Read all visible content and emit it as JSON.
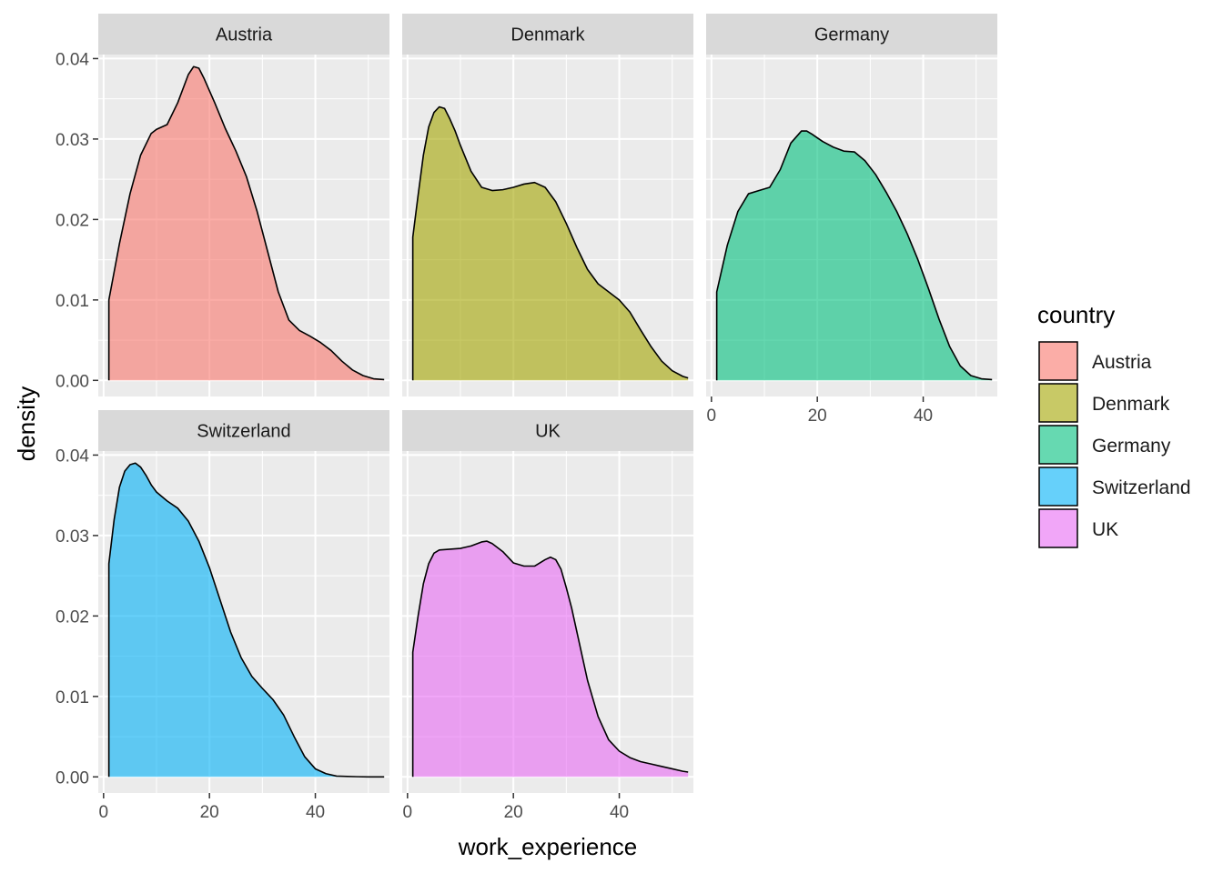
{
  "chart_data": {
    "type": "area",
    "subtype": "faceted-density",
    "x_label": "work_experience",
    "y_label": "density",
    "xlim": [
      -1,
      54
    ],
    "ylim": [
      -0.002,
      0.0405
    ],
    "x_ticks": [
      0,
      20,
      40
    ],
    "y_ticks": [
      0.0,
      0.01,
      0.02,
      0.03,
      0.04
    ],
    "y_tick_labels": [
      "0.00",
      "0.01",
      "0.02",
      "0.03",
      "0.04"
    ],
    "legend": {
      "title": "country",
      "placement": "right",
      "items": [
        {
          "label": "Austria",
          "color": "#F8766D"
        },
        {
          "label": "Denmark",
          "color": "#A3A500"
        },
        {
          "label": "Germany",
          "color": "#00BF7D"
        },
        {
          "label": "Switzerland",
          "color": "#00B0F6"
        },
        {
          "label": "UK",
          "color": "#E76BF3"
        }
      ]
    },
    "facets": [
      {
        "name": "Austria",
        "color": "#F8766D",
        "x": [
          1,
          3,
          5,
          7,
          9,
          10,
          12,
          14,
          16,
          17,
          18,
          19,
          21,
          23,
          25,
          27,
          29,
          31,
          33,
          35,
          37,
          39,
          41,
          43,
          45,
          47,
          49,
          51,
          53
        ],
        "y": [
          0.01,
          0.017,
          0.0232,
          0.028,
          0.0307,
          0.0312,
          0.0318,
          0.0345,
          0.038,
          0.039,
          0.0388,
          0.0375,
          0.0345,
          0.0313,
          0.0285,
          0.0253,
          0.021,
          0.016,
          0.011,
          0.0075,
          0.0062,
          0.0055,
          0.0047,
          0.0037,
          0.0024,
          0.0013,
          0.0006,
          0.0002,
          0.0001
        ]
      },
      {
        "name": "Denmark",
        "color": "#A3A500",
        "x": [
          1,
          2,
          3,
          4,
          5,
          6,
          7,
          8,
          9,
          10,
          12,
          14,
          16,
          18,
          20,
          22,
          24,
          26,
          28,
          30,
          32,
          34,
          36,
          38,
          40,
          42,
          44,
          46,
          48,
          50,
          52,
          53
        ],
        "y": [
          0.0178,
          0.023,
          0.028,
          0.0315,
          0.0333,
          0.034,
          0.0338,
          0.0325,
          0.031,
          0.0292,
          0.026,
          0.024,
          0.0236,
          0.0237,
          0.024,
          0.0244,
          0.0246,
          0.024,
          0.0222,
          0.0195,
          0.0165,
          0.0138,
          0.012,
          0.011,
          0.01,
          0.0085,
          0.0063,
          0.0042,
          0.0024,
          0.0012,
          0.0005,
          0.0003
        ]
      },
      {
        "name": "Germany",
        "color": "#00BF7D",
        "x": [
          1,
          3,
          5,
          7,
          9,
          11,
          13,
          15,
          17,
          18,
          19,
          21,
          23,
          25,
          27,
          29,
          31,
          33,
          35,
          37,
          39,
          41,
          43,
          45,
          47,
          49,
          51,
          53
        ],
        "y": [
          0.011,
          0.0168,
          0.021,
          0.0232,
          0.0236,
          0.024,
          0.0262,
          0.0295,
          0.031,
          0.031,
          0.0306,
          0.0297,
          0.029,
          0.0285,
          0.0284,
          0.0273,
          0.0256,
          0.0234,
          0.021,
          0.0182,
          0.015,
          0.0114,
          0.0076,
          0.0042,
          0.0018,
          0.0006,
          0.0002,
          0.0001
        ]
      },
      {
        "name": "Switzerland",
        "color": "#00B0F6",
        "x": [
          1,
          2,
          3,
          4,
          5,
          6,
          7,
          8,
          9,
          10,
          12,
          14,
          16,
          18,
          20,
          22,
          24,
          26,
          28,
          30,
          32,
          34,
          36,
          38,
          40,
          42,
          44,
          46,
          48,
          50,
          52,
          53
        ],
        "y": [
          0.0265,
          0.032,
          0.036,
          0.038,
          0.0388,
          0.039,
          0.0385,
          0.0375,
          0.0363,
          0.0354,
          0.0343,
          0.0334,
          0.0318,
          0.0293,
          0.026,
          0.022,
          0.018,
          0.0148,
          0.0125,
          0.011,
          0.0096,
          0.0077,
          0.005,
          0.0025,
          0.001,
          0.0004,
          0.0001,
          5e-05,
          2e-05,
          0.0,
          0.0,
          0.0
        ]
      },
      {
        "name": "UK",
        "color": "#E76BF3",
        "x": [
          1,
          2,
          3,
          4,
          5,
          6,
          8,
          10,
          12,
          14,
          15,
          16,
          18,
          20,
          22,
          24,
          26,
          27,
          28,
          29,
          30,
          31,
          32,
          33,
          34,
          36,
          38,
          40,
          42,
          44,
          46,
          48,
          50,
          52,
          53
        ],
        "y": [
          0.0155,
          0.02,
          0.024,
          0.0265,
          0.0278,
          0.0282,
          0.0283,
          0.0284,
          0.0287,
          0.0292,
          0.0293,
          0.029,
          0.028,
          0.0266,
          0.0262,
          0.0262,
          0.027,
          0.0273,
          0.027,
          0.0258,
          0.0235,
          0.021,
          0.018,
          0.015,
          0.012,
          0.0075,
          0.0046,
          0.0032,
          0.0024,
          0.0019,
          0.0016,
          0.0013,
          0.001,
          0.0007,
          0.0006
        ]
      }
    ]
  }
}
